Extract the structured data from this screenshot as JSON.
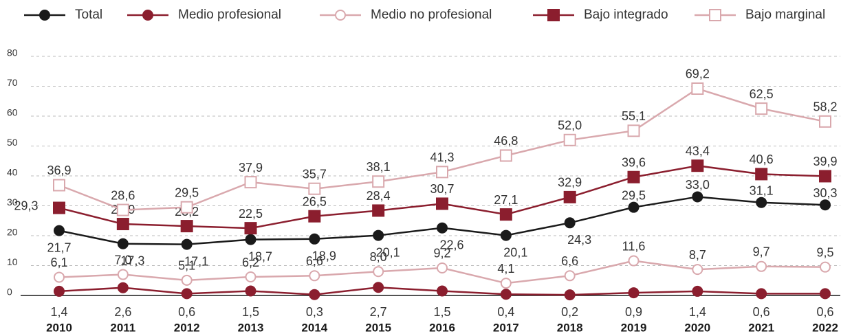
{
  "chart_data": {
    "type": "line",
    "categories": [
      "2010",
      "2011",
      "2012",
      "2013",
      "2014",
      "2015",
      "2016",
      "2017",
      "2018",
      "2019",
      "2020",
      "2021",
      "2022"
    ],
    "ylim": [
      0,
      80
    ],
    "yticks": [
      0,
      10,
      20,
      30,
      40,
      50,
      60,
      70,
      80
    ],
    "grid": true,
    "legend": "top",
    "series": [
      {
        "name": "Total",
        "color": "#1a1a1a",
        "marker": "circle",
        "filled": true,
        "values": [
          21.7,
          17.3,
          17.1,
          18.7,
          18.9,
          20.1,
          22.6,
          20.1,
          24.3,
          29.5,
          33.0,
          31.1,
          30.3
        ],
        "value_labels": [
          "21,7",
          "17,3",
          "17,1",
          "18,7",
          "18,9",
          "20,1",
          "22,6",
          "20,1",
          "24,3",
          "29,5",
          "33,0",
          "31,1",
          "30,3"
        ]
      },
      {
        "name": "Medio profesional",
        "color": "#8b1e2e",
        "marker": "circle",
        "filled": true,
        "values": [
          1.4,
          2.6,
          0.6,
          1.5,
          0.3,
          2.7,
          1.5,
          0.4,
          0.2,
          0.9,
          1.4,
          0.6,
          0.6
        ],
        "value_labels": [
          "1,4",
          "2,6",
          "0,6",
          "1,5",
          "0,3",
          "2,7",
          "1,5",
          "0,4",
          "0,2",
          "0,9",
          "1,4",
          "0,6",
          "0,6"
        ]
      },
      {
        "name": "Medio no profesional",
        "color": "#d9a8ad",
        "marker": "circle",
        "filled": false,
        "values": [
          6.1,
          7.0,
          5.1,
          6.2,
          6.6,
          8.0,
          9.2,
          4.1,
          6.6,
          11.6,
          8.7,
          9.7,
          9.5
        ],
        "value_labels": [
          "6,1",
          "7,0",
          "5,1",
          "6,2",
          "6,6",
          "8,0",
          "9,2",
          "4,1",
          "6,6",
          "11,6",
          "8,7",
          "9,7",
          "9,5"
        ]
      },
      {
        "name": "Bajo integrado",
        "color": "#8b1e2e",
        "marker": "square",
        "filled": true,
        "values": [
          29.3,
          23.9,
          23.2,
          22.5,
          26.5,
          28.4,
          30.7,
          27.1,
          32.9,
          39.6,
          43.4,
          40.6,
          39.9
        ],
        "value_labels": [
          "29,3",
          "23,9",
          "23,2",
          "22,5",
          "26,5",
          "28,4",
          "30,7",
          "27,1",
          "32,9",
          "39,6",
          "43,4",
          "40,6",
          "39,9"
        ]
      },
      {
        "name": "Bajo marginal",
        "color": "#d9a8ad",
        "marker": "square",
        "filled": false,
        "values": [
          36.9,
          28.6,
          29.5,
          37.9,
          35.7,
          38.1,
          41.3,
          46.8,
          52.0,
          55.1,
          69.2,
          62.5,
          58.2
        ],
        "value_labels": [
          "36,9",
          "28,6",
          "29,5",
          "37,9",
          "35,7",
          "38,1",
          "41,3",
          "46,8",
          "52,0",
          "55,1",
          "69,2",
          "62,5",
          "58,2"
        ]
      }
    ]
  }
}
